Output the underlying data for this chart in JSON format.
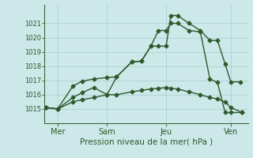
{
  "bg_color": "#cce8e8",
  "grid_color": "#aacccc",
  "line_color": "#2d5a2d",
  "title": "Pression niveau de la mer( hPa )",
  "yticks": [
    1015,
    1016,
    1017,
    1018,
    1019,
    1020,
    1021
  ],
  "ylim": [
    1014.0,
    1022.3
  ],
  "xlim": [
    -0.1,
    10.6
  ],
  "xtick_positions": [
    0.6,
    3.2,
    6.3,
    9.7
  ],
  "xtick_labels": [
    "Mer",
    "Sam",
    "Jeu",
    "Ven"
  ],
  "line1_x": [
    0.0,
    0.6,
    1.4,
    1.9,
    2.5,
    3.2,
    3.7,
    4.5,
    5.0,
    5.5,
    5.9,
    6.3,
    6.55,
    6.9,
    7.5,
    8.1,
    8.6,
    9.0,
    9.4,
    9.7,
    10.2
  ],
  "line1_y": [
    1015.1,
    1015.0,
    1016.6,
    1016.95,
    1017.1,
    1017.2,
    1017.25,
    1018.3,
    1018.35,
    1019.4,
    1019.4,
    1019.4,
    1021.55,
    1021.55,
    1021.0,
    1020.5,
    1019.8,
    1019.8,
    1018.15,
    1016.9,
    1016.9
  ],
  "line2_x": [
    0.0,
    0.6,
    1.4,
    1.9,
    2.5,
    3.2,
    3.7,
    4.5,
    5.0,
    5.5,
    5.9,
    6.3,
    6.55,
    6.9,
    7.5,
    8.1,
    8.6,
    9.0,
    9.4,
    9.7,
    10.3
  ],
  "line2_y": [
    1015.1,
    1015.0,
    1015.8,
    1016.15,
    1016.5,
    1016.0,
    1017.25,
    1018.3,
    1018.35,
    1019.4,
    1020.5,
    1020.5,
    1021.0,
    1021.0,
    1020.5,
    1020.4,
    1017.1,
    1016.85,
    1014.75,
    1014.75,
    1014.75
  ],
  "line3_x": [
    0.0,
    0.6,
    1.4,
    1.9,
    2.5,
    3.2,
    3.7,
    4.5,
    5.0,
    5.5,
    5.9,
    6.3,
    6.55,
    6.9,
    7.5,
    8.1,
    8.6,
    9.0,
    9.4,
    9.7,
    10.3
  ],
  "line3_y": [
    1015.1,
    1015.0,
    1015.5,
    1015.65,
    1015.8,
    1016.0,
    1016.0,
    1016.2,
    1016.3,
    1016.4,
    1016.45,
    1016.5,
    1016.45,
    1016.4,
    1016.2,
    1016.0,
    1015.8,
    1015.7,
    1015.5,
    1015.1,
    1014.75
  ]
}
